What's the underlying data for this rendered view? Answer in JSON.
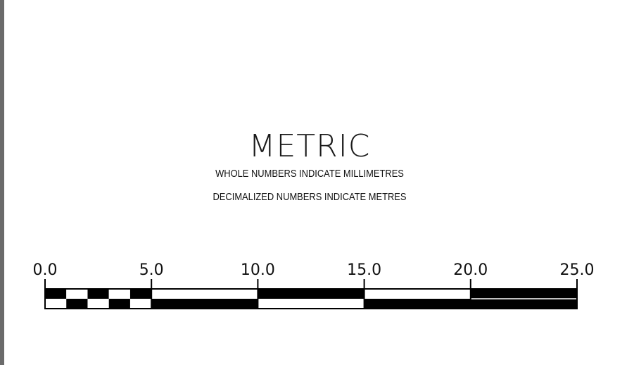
{
  "title": "METRIC",
  "subtitle_lines": [
    "WHOLE NUMBERS INDICATE MILLIMETRES",
    "DECIMALIZED NUMBERS INDICATE METRES"
  ],
  "scale_bar": {
    "tick_labels": [
      "0.0",
      "5.0",
      "10.0",
      "15.0",
      "20.0",
      "25.0"
    ],
    "tick_values": [
      0,
      5,
      10,
      15,
      20,
      25
    ],
    "range": [
      0,
      25
    ],
    "fine_subdivision_value": 1,
    "color_dark": "#000000",
    "color_light": "#ffffff"
  }
}
